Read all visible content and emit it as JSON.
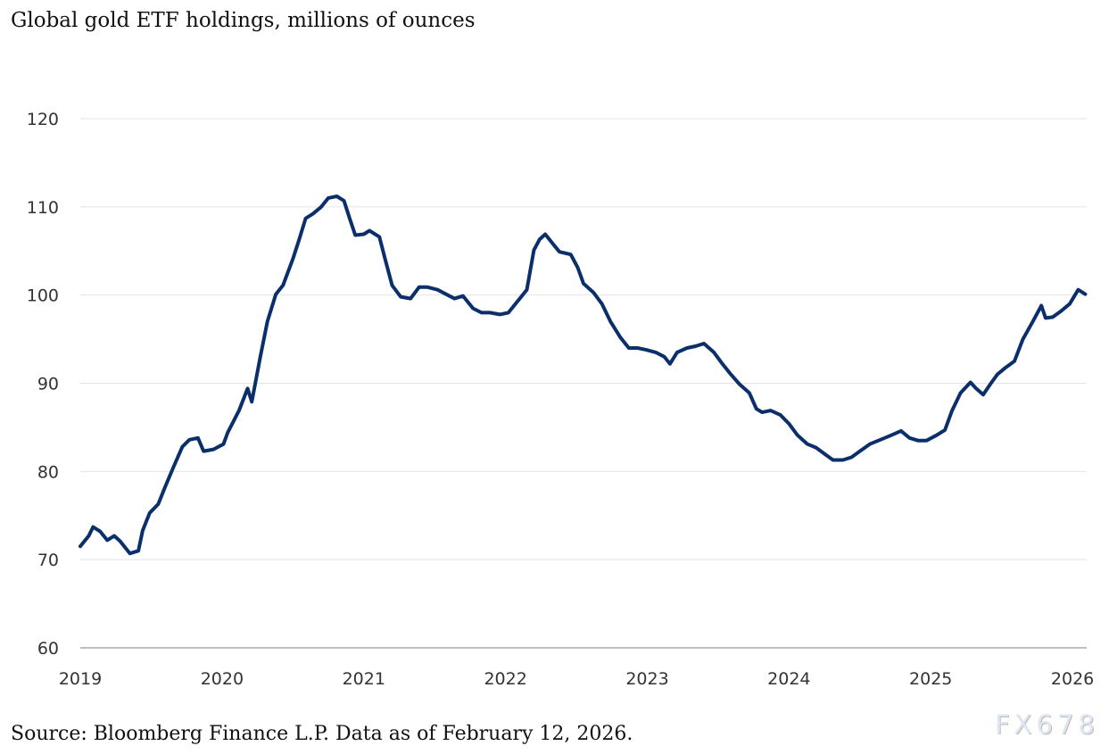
{
  "chart_data": {
    "type": "line",
    "title": "Global gold ETF holdings, millions of ounces",
    "xlabel": "",
    "ylabel": "",
    "xlim": [
      2019,
      2026.1
    ],
    "ylim": [
      60,
      120
    ],
    "yticks": [
      60,
      70,
      80,
      90,
      100,
      110,
      120
    ],
    "xticks": [
      2019,
      2020,
      2021,
      2022,
      2023,
      2024,
      2025,
      2026
    ],
    "grid": "horizontal",
    "line_color": "#0b2f6b",
    "series": [
      {
        "x": [
          2019.0,
          2019.06,
          2019.09,
          2019.14,
          2019.19,
          2019.24,
          2019.28,
          2019.35,
          2019.41,
          2019.44,
          2019.49,
          2019.55,
          2019.6,
          2019.66,
          2019.72,
          2019.77,
          2019.83,
          2019.87,
          2019.94,
          2020.01,
          2020.04,
          2020.12,
          2020.18,
          2020.21,
          2020.27,
          2020.32,
          2020.38,
          2020.43,
          2020.5,
          2020.54,
          2020.59,
          2020.64,
          2020.7,
          2020.75,
          2020.81,
          2020.86,
          2020.9,
          2020.94,
          2021.0,
          2021.04,
          2021.11,
          2021.15,
          2021.2,
          2021.26,
          2021.33,
          2021.39,
          2021.45,
          2021.52,
          2021.58,
          2021.64,
          2021.7,
          2021.77,
          2021.83,
          2021.89,
          2021.96,
          2022.02,
          2022.07,
          2022.15,
          2022.2,
          2022.24,
          2022.28,
          2022.33,
          2022.38,
          2022.46,
          2022.51,
          2022.55,
          2022.62,
          2022.68,
          2022.74,
          2022.81,
          2022.87,
          2022.93,
          2022.99,
          2023.06,
          2023.12,
          2023.16,
          2023.21,
          2023.28,
          2023.34,
          2023.4,
          2023.47,
          2023.53,
          2023.59,
          2023.65,
          2023.72,
          2023.77,
          2023.81,
          2023.87,
          2023.94,
          2024.0,
          2024.06,
          2024.13,
          2024.19,
          2024.25,
          2024.31,
          2024.38,
          2024.44,
          2024.5,
          2024.57,
          2024.66,
          2024.72,
          2024.79,
          2024.85,
          2024.91,
          2024.97,
          2025.04,
          2025.1,
          2025.15,
          2025.21,
          2025.28,
          2025.32,
          2025.37,
          2025.42,
          2025.47,
          2025.53,
          2025.59,
          2025.65,
          2025.72,
          2025.78,
          2025.81,
          2025.86,
          2025.92,
          2025.98,
          2026.04,
          2026.09
        ],
        "y": [
          71.5,
          72.7,
          73.7,
          73.2,
          72.2,
          72.7,
          72.1,
          70.7,
          71.0,
          73.3,
          75.3,
          76.3,
          78.3,
          80.6,
          82.8,
          83.6,
          83.8,
          82.3,
          82.5,
          83.1,
          84.4,
          86.9,
          89.4,
          87.9,
          93.0,
          97.0,
          100.1,
          101.1,
          104.1,
          106.1,
          108.7,
          109.2,
          110.0,
          111.0,
          111.2,
          110.7,
          108.7,
          106.8,
          106.9,
          107.3,
          106.6,
          104.1,
          101.1,
          99.8,
          99.6,
          100.9,
          100.9,
          100.6,
          100.1,
          99.6,
          99.9,
          98.5,
          98.0,
          98.0,
          97.8,
          98.0,
          99.0,
          100.6,
          105.1,
          106.3,
          106.9,
          105.9,
          104.9,
          104.6,
          103.1,
          101.3,
          100.3,
          99.0,
          97.0,
          95.2,
          94.0,
          94.0,
          93.8,
          93.5,
          93.0,
          92.2,
          93.5,
          94.0,
          94.2,
          94.5,
          93.5,
          92.2,
          91.0,
          89.9,
          88.9,
          87.1,
          86.7,
          86.9,
          86.4,
          85.4,
          84.1,
          83.1,
          82.7,
          82.0,
          81.3,
          81.3,
          81.6,
          82.3,
          83.1,
          83.7,
          84.1,
          84.6,
          83.8,
          83.5,
          83.5,
          84.1,
          84.7,
          86.9,
          88.9,
          90.1,
          89.4,
          88.7,
          89.9,
          91.0,
          91.8,
          92.5,
          95.0,
          97.0,
          98.8,
          97.4,
          97.5,
          98.2,
          99.0,
          100.6,
          100.1
        ]
      }
    ]
  },
  "source": "Source: Bloomberg Finance L.P. Data as of February 12, 2026.",
  "watermark": "FX678"
}
